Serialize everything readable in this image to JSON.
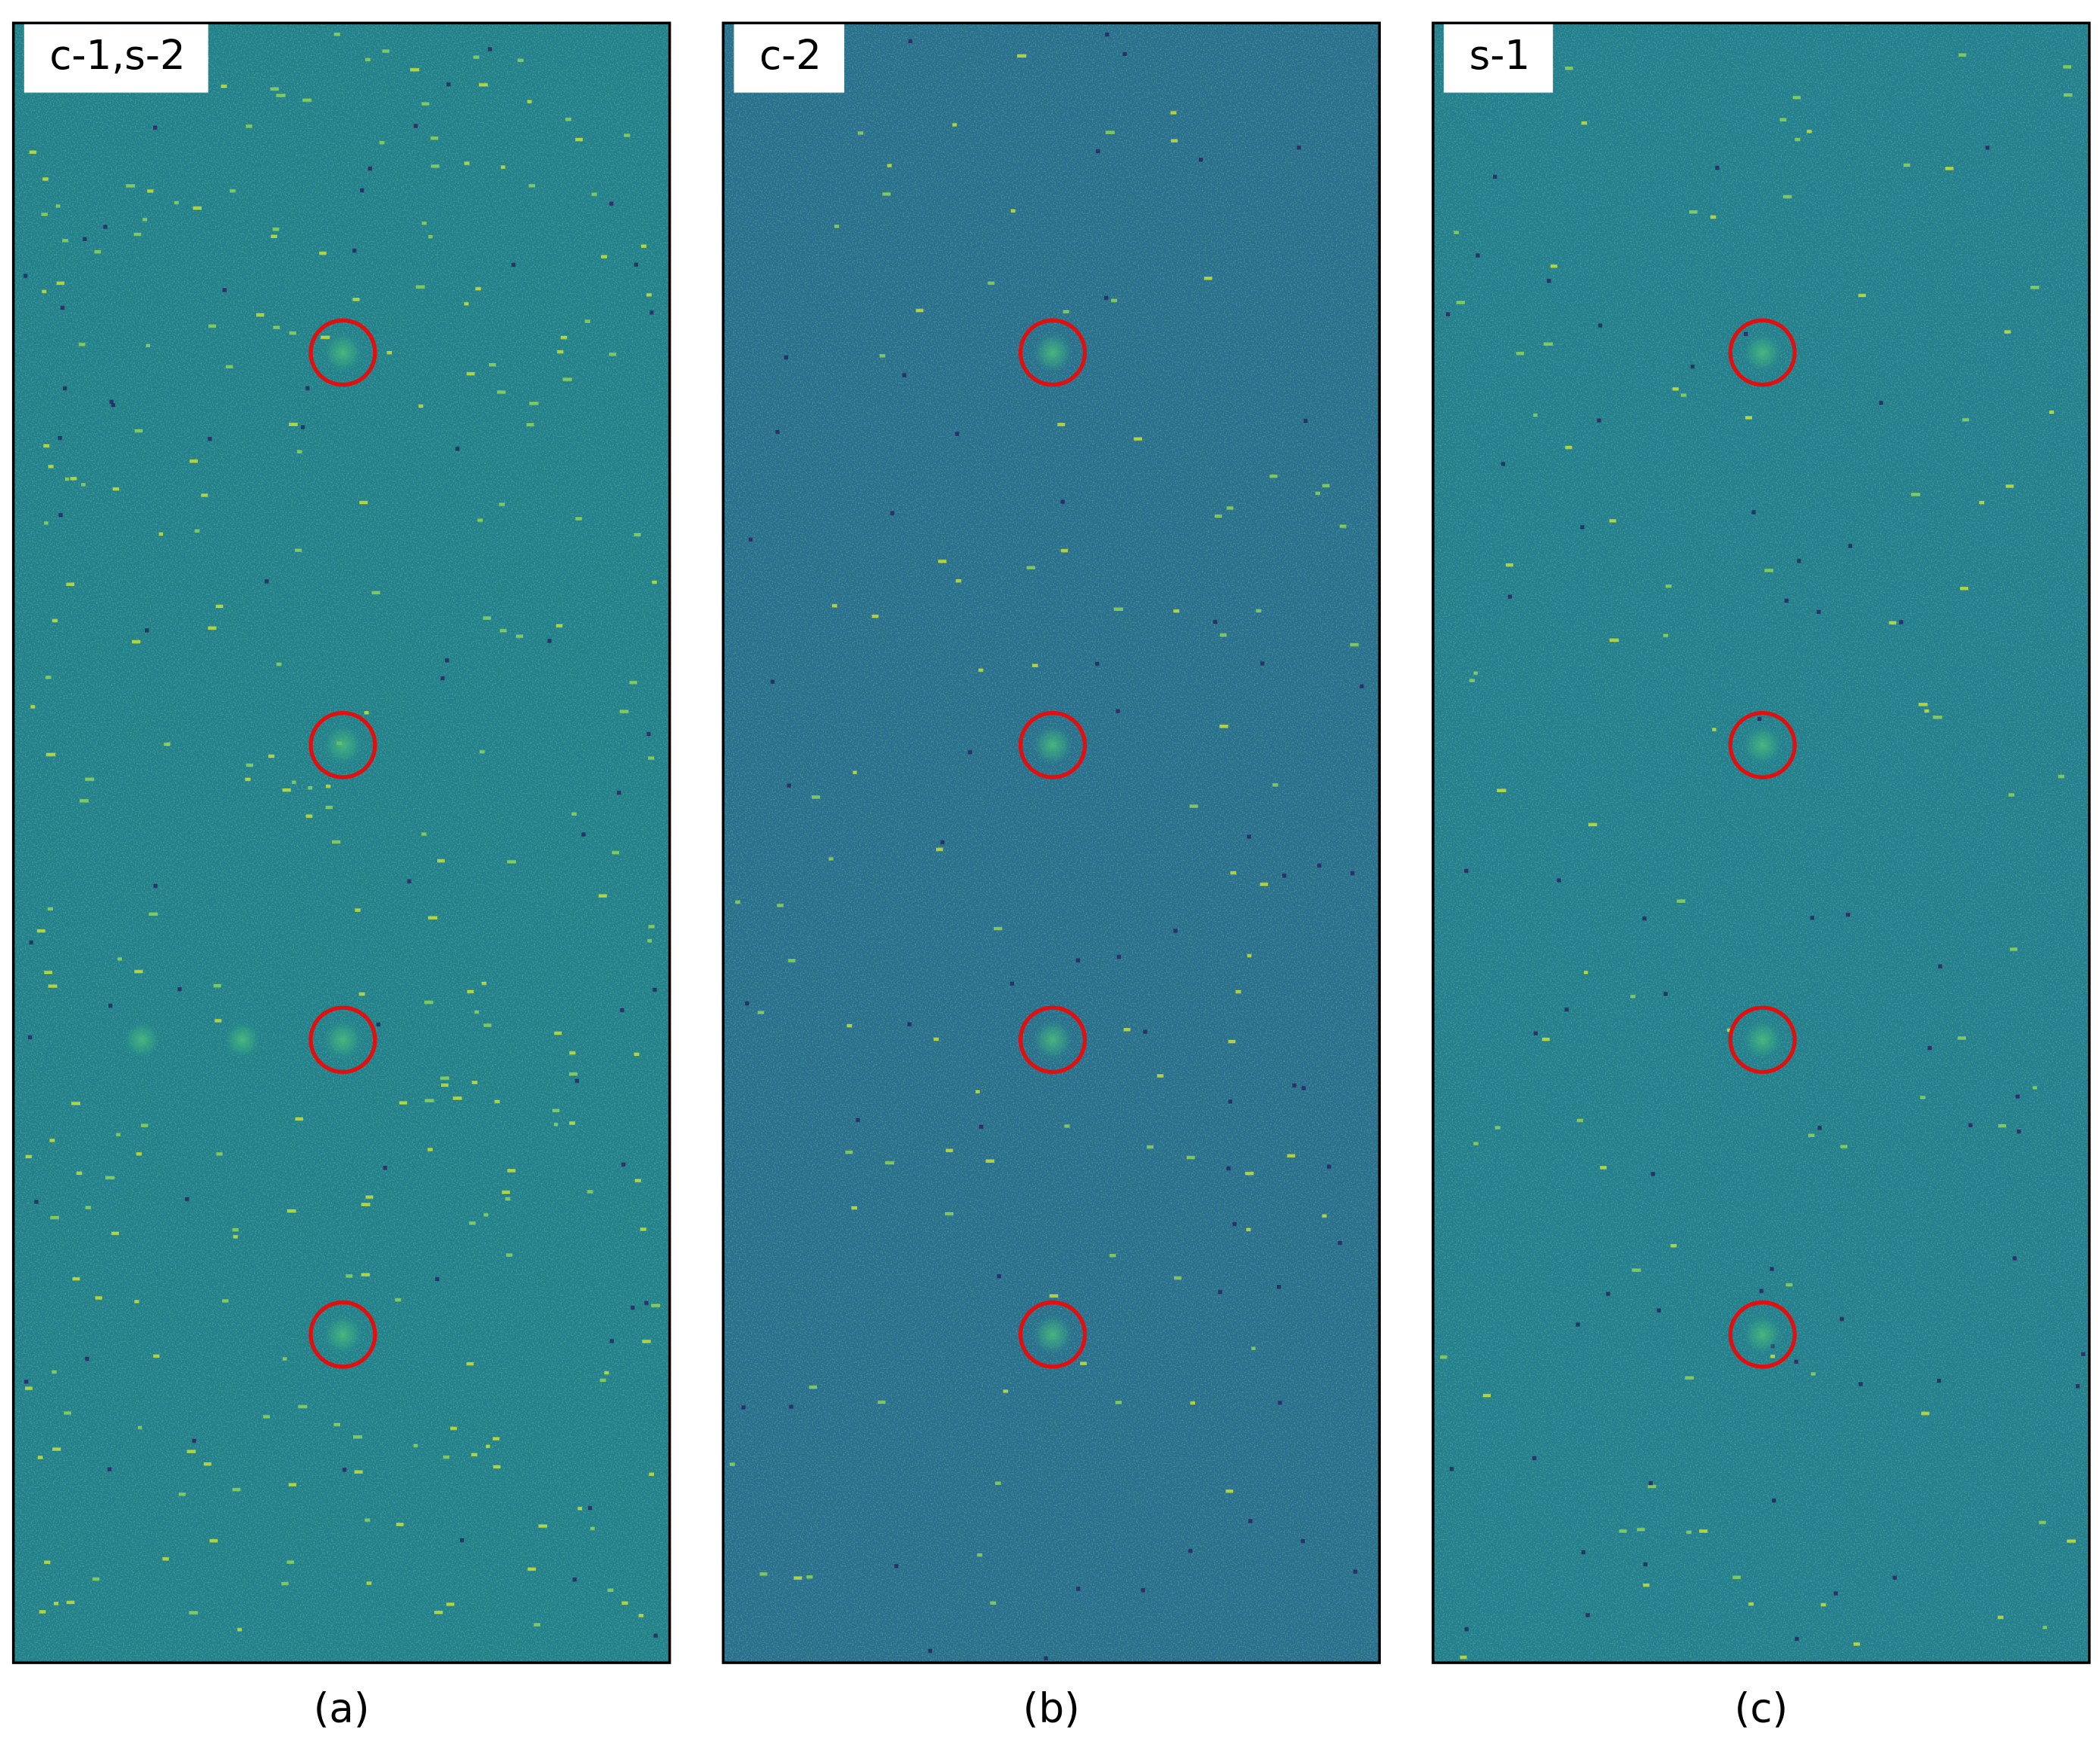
{
  "panels": [
    {
      "tag": "c-1,s-2",
      "caption": "(a)"
    },
    {
      "tag": "c-2",
      "caption": "(b)"
    },
    {
      "tag": "s-1",
      "caption": "(c)"
    }
  ]
}
